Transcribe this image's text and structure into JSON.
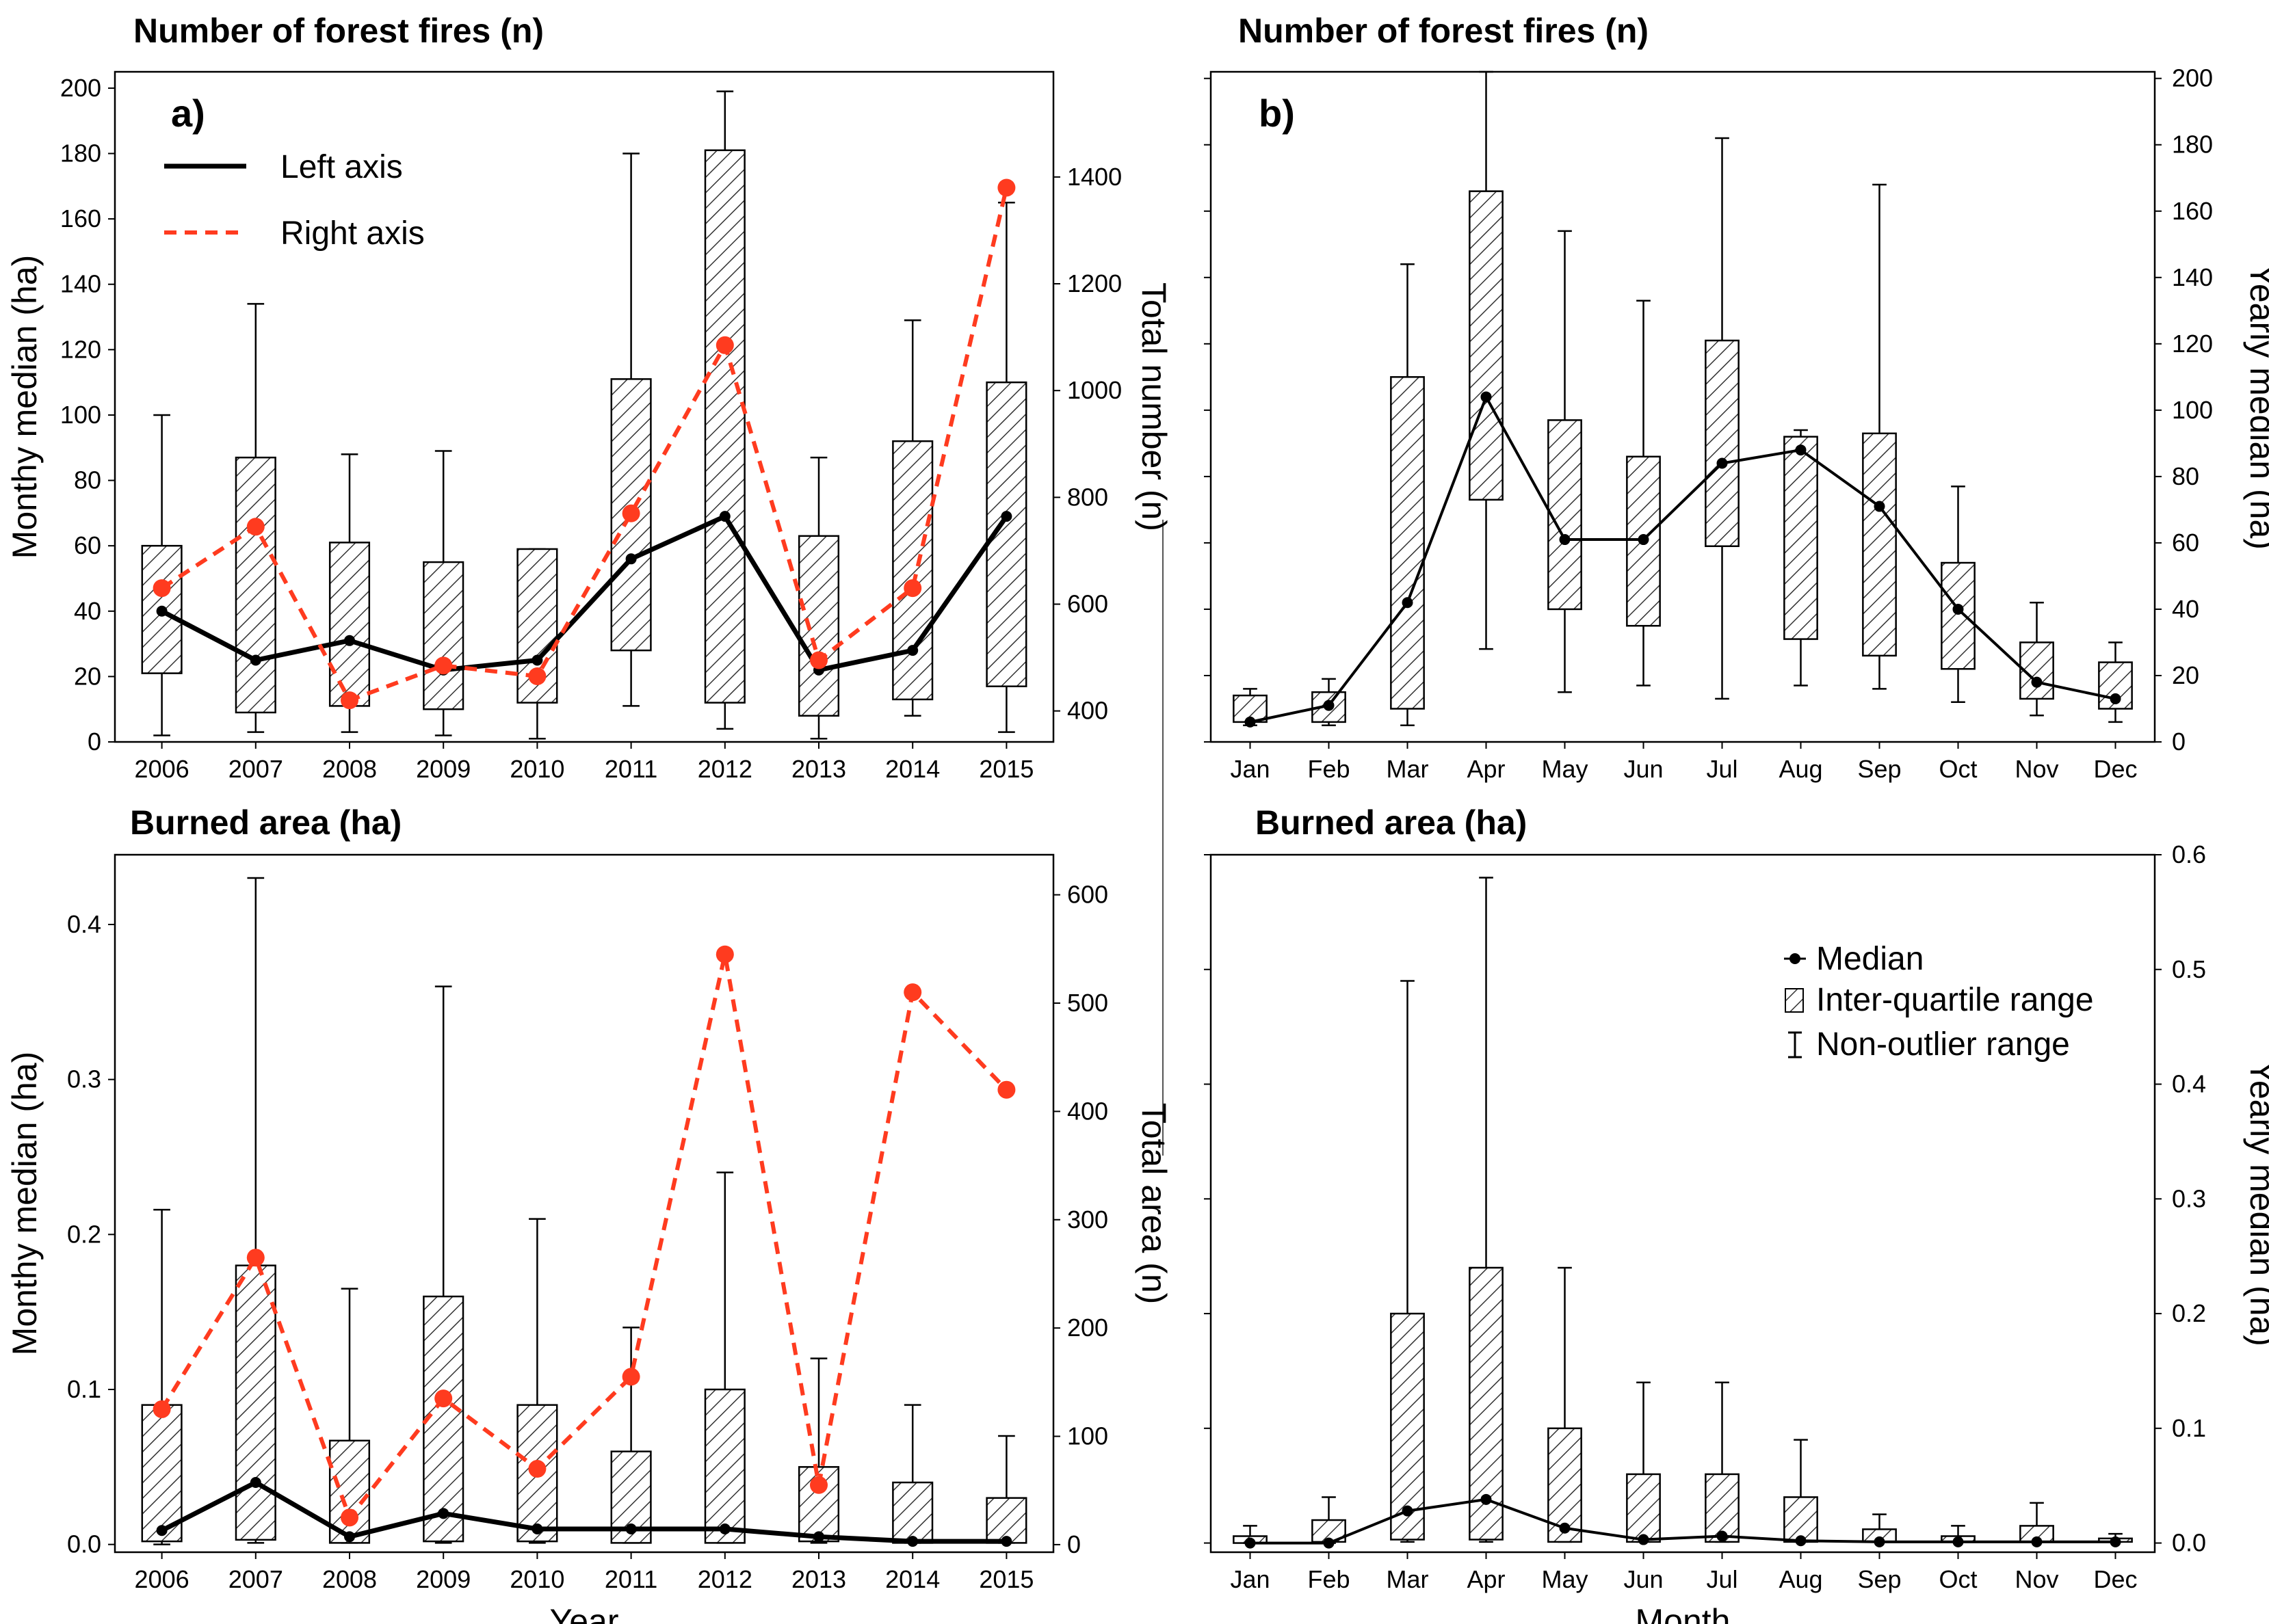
{
  "figure": {
    "legend_a": {
      "left": "Left axis",
      "right": "Right axis"
    },
    "legend_b": {
      "median": "Median",
      "iqr": "Inter-quartile range",
      "range": "Non-outlier range"
    },
    "colors": {
      "black": "#000000",
      "red": "#ff3b1f"
    }
  },
  "chart_data": [
    {
      "id": "a_top",
      "type": "box",
      "title": "Number of forest fires (n)",
      "panel_label": "a)",
      "ylabel": "Monthy median (ha)",
      "y2label": "Total number (n)",
      "xlabel": "",
      "categories": [
        "2006",
        "2007",
        "2008",
        "2009",
        "2010",
        "2011",
        "2012",
        "2013",
        "2014",
        "2015"
      ],
      "ylim": [
        0,
        205
      ],
      "yticks": [
        0,
        20,
        40,
        60,
        80,
        100,
        120,
        140,
        160,
        180,
        200
      ],
      "y2lim": [
        342,
        1597
      ],
      "y2ticks": [
        400,
        600,
        800,
        1000,
        1200,
        1400
      ],
      "boxes": [
        {
          "min": 2,
          "q1": 21,
          "q3": 60,
          "max": 100
        },
        {
          "min": 3,
          "q1": 9,
          "q3": 87,
          "max": 134
        },
        {
          "min": 3,
          "q1": 11,
          "q3": 61,
          "max": 88
        },
        {
          "min": 2,
          "q1": 10,
          "q3": 55,
          "max": 89
        },
        {
          "min": 1,
          "q1": 12,
          "q3": 59,
          "max": 59
        },
        {
          "min": 11,
          "q1": 28,
          "q3": 111,
          "max": 180
        },
        {
          "min": 4,
          "q1": 12,
          "q3": 181,
          "max": 199
        },
        {
          "min": 1,
          "q1": 8,
          "q3": 63,
          "max": 87
        },
        {
          "min": 8,
          "q1": 13,
          "q3": 92,
          "max": 129
        },
        {
          "min": 3,
          "q1": 17,
          "q3": 110,
          "max": 165
        }
      ],
      "series": [
        {
          "name": "Left axis",
          "axis": "left",
          "values": [
            40,
            25,
            31,
            22,
            25,
            56,
            69,
            22,
            28,
            69
          ]
        },
        {
          "name": "Right axis",
          "axis": "right",
          "values": [
            630,
            745,
            420,
            485,
            465,
            770,
            1085,
            495,
            630,
            1380
          ]
        }
      ]
    },
    {
      "id": "a_bottom",
      "type": "box",
      "title": "Burned area (ha)",
      "panel_label": "",
      "ylabel": "Monthy median (ha)",
      "y2label": "Total area (n)",
      "xlabel": "Year",
      "categories": [
        "2006",
        "2007",
        "2008",
        "2009",
        "2010",
        "2011",
        "2012",
        "2013",
        "2014",
        "2015"
      ],
      "ylim": [
        -0.005,
        0.445
      ],
      "yticks": [
        "0.0",
        "0.1",
        "0.2",
        "0.3",
        "0.4"
      ],
      "y2lim": [
        -7,
        637
      ],
      "y2ticks": [
        0,
        100,
        200,
        300,
        400,
        500,
        600
      ],
      "boxes": [
        {
          "min": 0,
          "q1": 0.002,
          "q3": 0.09,
          "max": 0.216
        },
        {
          "min": 0.001,
          "q1": 0.003,
          "q3": 0.18,
          "max": 0.43
        },
        {
          "min": 0.001,
          "q1": 0.001,
          "q3": 0.067,
          "max": 0.165
        },
        {
          "min": 0.001,
          "q1": 0.002,
          "q3": 0.16,
          "max": 0.36
        },
        {
          "min": 0.001,
          "q1": 0.002,
          "q3": 0.09,
          "max": 0.21
        },
        {
          "min": 0.001,
          "q1": 0.001,
          "q3": 0.06,
          "max": 0.14
        },
        {
          "min": 0.001,
          "q1": 0.001,
          "q3": 0.1,
          "max": 0.24
        },
        {
          "min": 0.001,
          "q1": 0.002,
          "q3": 0.05,
          "max": 0.12
        },
        {
          "min": 0.001,
          "q1": 0.001,
          "q3": 0.04,
          "max": 0.09
        },
        {
          "min": 0.001,
          "q1": 0.001,
          "q3": 0.03,
          "max": 0.07
        }
      ],
      "series": [
        {
          "name": "Left axis",
          "axis": "left",
          "values": [
            0.009,
            0.04,
            0.005,
            0.02,
            0.01,
            0.01,
            0.01,
            0.005,
            0.002,
            0.002
          ]
        },
        {
          "name": "Right axis",
          "axis": "right",
          "values": [
            125,
            265,
            25,
            135,
            70,
            155,
            545,
            55,
            510,
            420
          ]
        }
      ]
    },
    {
      "id": "b_top",
      "type": "box",
      "title": "Number of forest fires (n)",
      "panel_label": "b)",
      "ylabel": "",
      "y2label": "Yearly median (ha)",
      "xlabel": "",
      "categories": [
        "Jan",
        "Feb",
        "Mar",
        "Apr",
        "May",
        "Jun",
        "Jul",
        "Aug",
        "Sep",
        "Oct",
        "Nov",
        "Dec"
      ],
      "y2lim": [
        0,
        202
      ],
      "y2ticks": [
        0,
        20,
        40,
        60,
        80,
        100,
        120,
        140,
        160,
        180,
        200
      ],
      "boxes": [
        {
          "min": 5,
          "q1": 6,
          "q3": 14,
          "max": 16
        },
        {
          "min": 5,
          "q1": 6,
          "q3": 15,
          "max": 19
        },
        {
          "min": 5,
          "q1": 10,
          "q3": 110,
          "max": 144
        },
        {
          "min": 28,
          "q1": 73,
          "q3": 166,
          "max": 202
        },
        {
          "min": 15,
          "q1": 40,
          "q3": 97,
          "max": 154
        },
        {
          "min": 17,
          "q1": 35,
          "q3": 86,
          "max": 133
        },
        {
          "min": 13,
          "q1": 59,
          "q3": 121,
          "max": 182
        },
        {
          "min": 17,
          "q1": 31,
          "q3": 92,
          "max": 94
        },
        {
          "min": 16,
          "q1": 26,
          "q3": 93,
          "max": 168
        },
        {
          "min": 12,
          "q1": 22,
          "q3": 54,
          "max": 77
        },
        {
          "min": 8,
          "q1": 13,
          "q3": 30,
          "max": 42
        },
        {
          "min": 6,
          "q1": 10,
          "q3": 24,
          "max": 30
        }
      ],
      "series": [
        {
          "name": "Median",
          "axis": "right",
          "values": [
            6,
            11,
            42,
            104,
            61,
            61,
            84,
            88,
            71,
            40,
            18,
            13
          ]
        }
      ]
    },
    {
      "id": "b_bottom",
      "type": "box",
      "title": "Burned area (ha)",
      "panel_label": "",
      "ylabel": "",
      "y2label": "Yearly median (ha)",
      "xlabel": "Month",
      "categories": [
        "Jan",
        "Feb",
        "Mar",
        "Apr",
        "May",
        "Jun",
        "Jul",
        "Aug",
        "Sep",
        "Oct",
        "Nov",
        "Dec"
      ],
      "y2lim": [
        -0.008,
        0.6
      ],
      "y2ticks": [
        "0.0",
        "0.1",
        "0.2",
        "0.3",
        "0.4",
        "0.5",
        "0.6"
      ],
      "boxes": [
        {
          "min": 0,
          "q1": 0,
          "q3": 0.006,
          "max": 0.015
        },
        {
          "min": 0,
          "q1": 0.001,
          "q3": 0.02,
          "max": 0.04
        },
        {
          "min": 0.001,
          "q1": 0.003,
          "q3": 0.2,
          "max": 0.49
        },
        {
          "min": 0.001,
          "q1": 0.003,
          "q3": 0.24,
          "max": 0.58
        },
        {
          "min": 0.001,
          "q1": 0.001,
          "q3": 0.1,
          "max": 0.24
        },
        {
          "min": 0.001,
          "q1": 0.001,
          "q3": 0.06,
          "max": 0.14
        },
        {
          "min": 0.001,
          "q1": 0.001,
          "q3": 0.06,
          "max": 0.14
        },
        {
          "min": 0.001,
          "q1": 0.001,
          "q3": 0.04,
          "max": 0.09
        },
        {
          "min": 0.001,
          "q1": 0.001,
          "q3": 0.012,
          "max": 0.025
        },
        {
          "min": 0.001,
          "q1": 0.001,
          "q3": 0.006,
          "max": 0.015
        },
        {
          "min": 0.001,
          "q1": 0.001,
          "q3": 0.015,
          "max": 0.035
        },
        {
          "min": 0.001,
          "q1": 0.001,
          "q3": 0.004,
          "max": 0.008
        }
      ],
      "series": [
        {
          "name": "Median",
          "axis": "right",
          "values": [
            0,
            0,
            0.028,
            0.038,
            0.013,
            0.003,
            0.006,
            0.002,
            0.001,
            0.001,
            0.001,
            0.001
          ]
        }
      ]
    }
  ]
}
